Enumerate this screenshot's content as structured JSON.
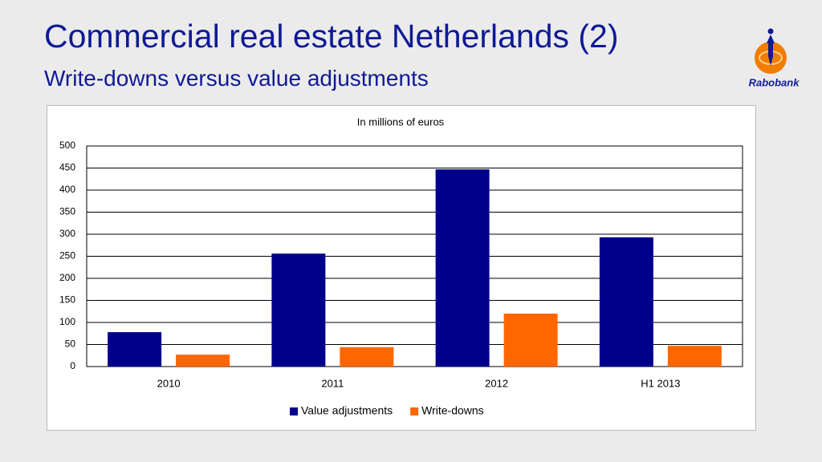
{
  "header": {
    "title": "Commercial real estate Netherlands (2)",
    "subtitle": "Write-downs versus value adjustments",
    "logo": "Rabobank"
  },
  "chart_data": {
    "type": "bar",
    "title": "In millions of euros",
    "categories": [
      "2010",
      "2011",
      "2012",
      "H1 2013"
    ],
    "series": [
      {
        "name": "Value adjustments",
        "color": "#00008c",
        "values": [
          78,
          256,
          447,
          293
        ]
      },
      {
        "name": "Write-downs",
        "color": "#ff6600",
        "values": [
          27,
          44,
          120,
          47
        ]
      }
    ],
    "ylim": [
      0,
      500
    ],
    "yticks": [
      0,
      50,
      100,
      150,
      200,
      250,
      300,
      350,
      400,
      450,
      500
    ],
    "grid": true,
    "legend": "bottom"
  }
}
